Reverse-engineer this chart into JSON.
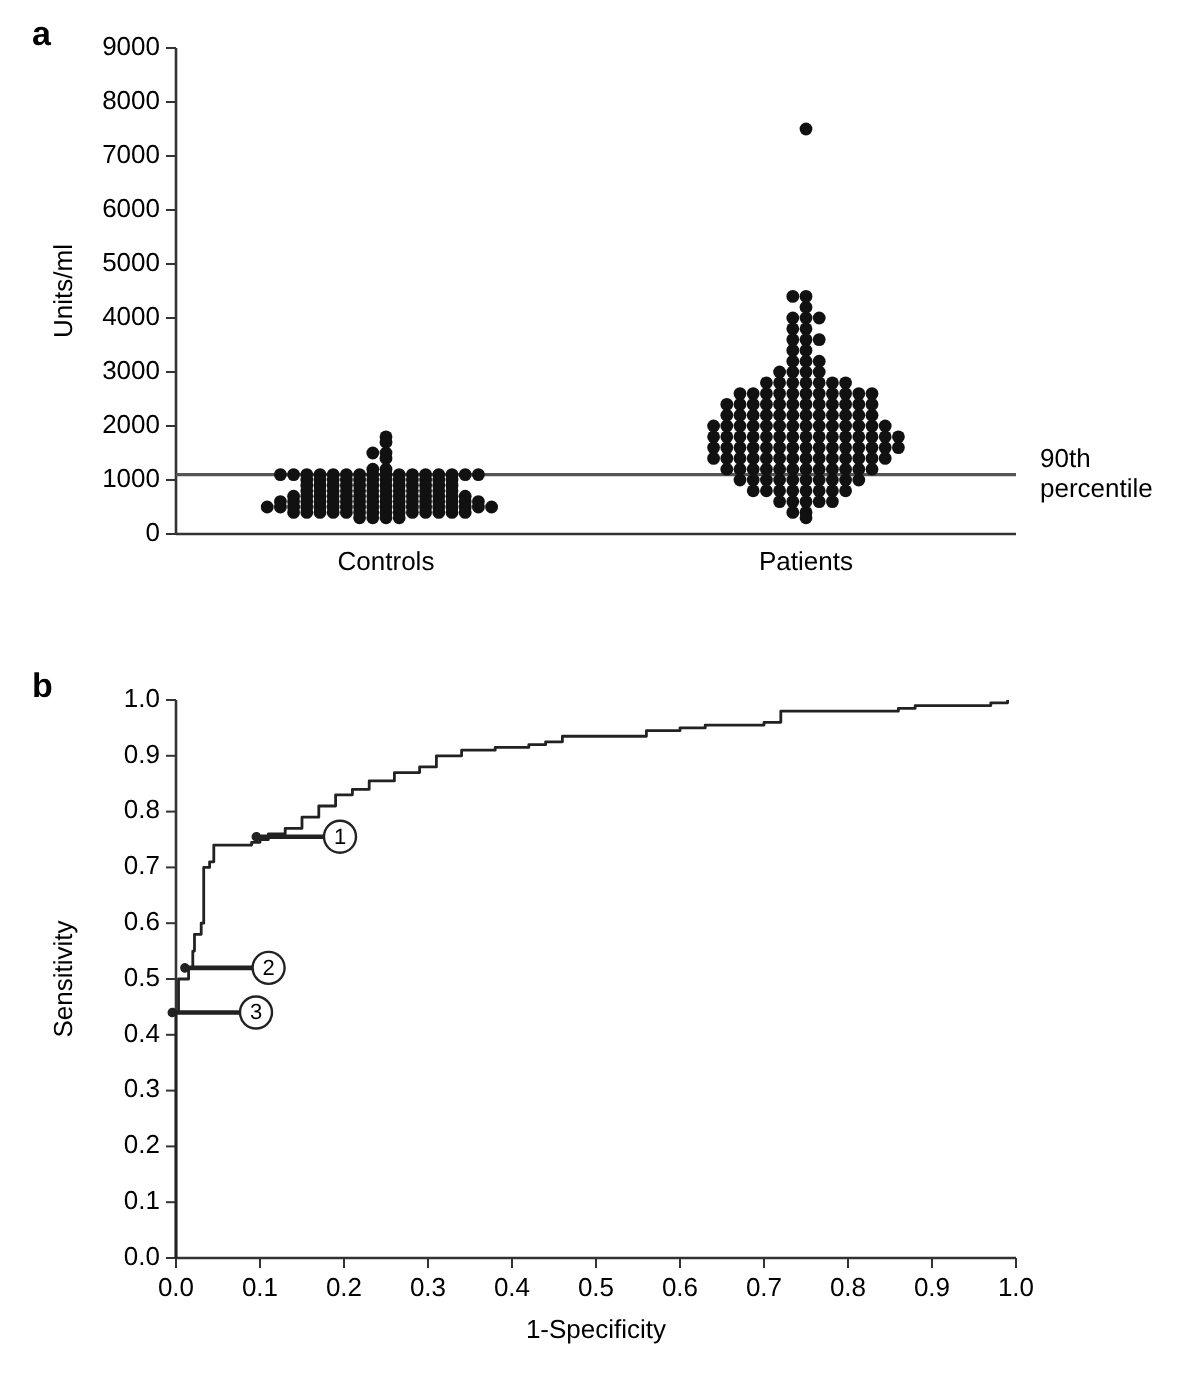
{
  "chart_data": [
    {
      "type": "scatter",
      "title": "a",
      "ylabel": "Units/ml",
      "categories": [
        "Controls",
        "Patients"
      ],
      "ylim": [
        0,
        9000
      ],
      "yticks": [
        0,
        1000,
        2000,
        3000,
        4000,
        5000,
        6000,
        7000,
        8000,
        9000
      ],
      "marker": "circle",
      "ref_lines": [
        {
          "axis": "y",
          "value": 1100,
          "label": "90th percentile",
          "color": "#555555"
        }
      ],
      "series": [
        {
          "color": "#111111",
          "x": [
            "Controls",
            "Controls",
            "Controls",
            "Controls",
            "Controls",
            "Controls",
            "Controls",
            "Controls",
            "Controls",
            "Controls",
            "Controls",
            "Controls",
            "Controls",
            "Controls",
            "Controls",
            "Controls",
            "Controls",
            "Controls",
            "Controls",
            "Controls",
            "Controls",
            "Controls",
            "Controls",
            "Controls",
            "Controls",
            "Controls",
            "Controls",
            "Controls",
            "Controls",
            "Controls",
            "Controls",
            "Controls",
            "Controls",
            "Controls",
            "Controls",
            "Controls",
            "Controls",
            "Controls",
            "Controls",
            "Controls",
            "Controls",
            "Controls",
            "Controls",
            "Controls",
            "Controls",
            "Controls",
            "Controls",
            "Controls",
            "Controls",
            "Controls",
            "Controls",
            "Controls",
            "Controls",
            "Controls",
            "Controls",
            "Controls",
            "Controls",
            "Controls",
            "Controls",
            "Controls",
            "Controls",
            "Controls",
            "Controls",
            "Controls",
            "Controls",
            "Controls",
            "Controls",
            "Controls",
            "Controls",
            "Controls",
            "Controls",
            "Controls",
            "Controls",
            "Controls",
            "Controls",
            "Controls",
            "Controls",
            "Controls",
            "Controls",
            "Controls",
            "Controls",
            "Controls",
            "Controls",
            "Controls",
            "Controls",
            "Controls",
            "Controls",
            "Controls",
            "Controls",
            "Controls",
            "Controls",
            "Controls",
            "Controls",
            "Controls",
            "Controls",
            "Controls",
            "Controls",
            "Controls",
            "Controls",
            "Controls",
            "Controls",
            "Controls",
            "Controls",
            "Controls",
            "Controls",
            "Controls",
            "Controls",
            "Controls",
            "Controls",
            "Controls",
            "Controls",
            "Controls",
            "Controls",
            "Controls",
            "Controls",
            "Controls",
            "Controls",
            "Controls",
            "Controls",
            "Controls",
            "Controls",
            "Controls",
            "Controls",
            "Controls",
            "Controls"
          ],
          "values": [
            1800,
            1700,
            1500,
            1500,
            1400,
            1200,
            1200,
            1100,
            1100,
            1100,
            1100,
            1100,
            1100,
            1100,
            1100,
            1100,
            1100,
            1100,
            1100,
            1100,
            1100,
            1100,
            1100,
            1000,
            1000,
            1000,
            1000,
            1000,
            1000,
            1000,
            1000,
            1000,
            1000,
            1000,
            1000,
            900,
            900,
            900,
            900,
            900,
            900,
            900,
            900,
            900,
            900,
            900,
            900,
            800,
            800,
            800,
            800,
            800,
            800,
            800,
            800,
            800,
            800,
            800,
            800,
            700,
            700,
            700,
            700,
            700,
            700,
            700,
            700,
            700,
            700,
            700,
            700,
            700,
            700,
            600,
            600,
            600,
            600,
            600,
            600,
            600,
            600,
            600,
            600,
            600,
            600,
            600,
            600,
            600,
            600,
            500,
            500,
            500,
            500,
            500,
            500,
            500,
            500,
            500,
            500,
            500,
            500,
            500,
            500,
            500,
            500,
            500,
            500,
            400,
            400,
            400,
            400,
            400,
            400,
            400,
            400,
            400,
            400,
            400,
            400,
            400,
            400,
            300,
            300,
            300,
            300
          ]
        },
        {
          "color": "#111111",
          "x": [
            "Patients",
            "Patients",
            "Patients",
            "Patients",
            "Patients",
            "Patients",
            "Patients",
            "Patients",
            "Patients",
            "Patients",
            "Patients",
            "Patients",
            "Patients",
            "Patients",
            "Patients",
            "Patients",
            "Patients",
            "Patients",
            "Patients",
            "Patients",
            "Patients",
            "Patients",
            "Patients",
            "Patients",
            "Patients",
            "Patients",
            "Patients",
            "Patients",
            "Patients",
            "Patients",
            "Patients",
            "Patients",
            "Patients",
            "Patients",
            "Patients",
            "Patients",
            "Patients",
            "Patients",
            "Patients",
            "Patients",
            "Patients",
            "Patients",
            "Patients",
            "Patients",
            "Patients",
            "Patients",
            "Patients",
            "Patients",
            "Patients",
            "Patients",
            "Patients",
            "Patients",
            "Patients",
            "Patients",
            "Patients",
            "Patients",
            "Patients",
            "Patients",
            "Patients",
            "Patients",
            "Patients",
            "Patients",
            "Patients",
            "Patients",
            "Patients",
            "Patients",
            "Patients",
            "Patients",
            "Patients",
            "Patients",
            "Patients",
            "Patients",
            "Patients",
            "Patients",
            "Patients",
            "Patients",
            "Patients",
            "Patients",
            "Patients",
            "Patients",
            "Patients",
            "Patients",
            "Patients",
            "Patients",
            "Patients",
            "Patients",
            "Patients",
            "Patients",
            "Patients",
            "Patients",
            "Patients",
            "Patients",
            "Patients",
            "Patients",
            "Patients",
            "Patients",
            "Patients",
            "Patients",
            "Patients",
            "Patients",
            "Patients",
            "Patients",
            "Patients",
            "Patients",
            "Patients",
            "Patients",
            "Patients",
            "Patients",
            "Patients",
            "Patients",
            "Patients",
            "Patients",
            "Patients",
            "Patients",
            "Patients",
            "Patients",
            "Patients",
            "Patients",
            "Patients",
            "Patients",
            "Patients",
            "Patients",
            "Patients",
            "Patients",
            "Patients",
            "Patients",
            "Patients",
            "Patients",
            "Patients",
            "Patients",
            "Patients",
            "Patients",
            "Patients",
            "Patients",
            "Patients",
            "Patients",
            "Patients",
            "Patients",
            "Patients",
            "Patients",
            "Patients",
            "Patients",
            "Patients",
            "Patients",
            "Patients",
            "Patients",
            "Patients",
            "Patients",
            "Patients",
            "Patients",
            "Patients",
            "Patients",
            "Patients",
            "Patients",
            "Patients",
            "Patients",
            "Patients",
            "Patients",
            "Patients"
          ],
          "values": [
            7500,
            4400,
            4400,
            4200,
            4000,
            4000,
            4000,
            3800,
            3800,
            3600,
            3600,
            3600,
            3400,
            3400,
            3200,
            3200,
            3200,
            3000,
            3000,
            3000,
            3000,
            2800,
            2800,
            2800,
            2800,
            2800,
            2800,
            2600,
            2600,
            2600,
            2600,
            2600,
            2600,
            2600,
            2600,
            2600,
            2600,
            2400,
            2400,
            2400,
            2400,
            2400,
            2400,
            2400,
            2400,
            2400,
            2400,
            2400,
            2400,
            2200,
            2200,
            2200,
            2200,
            2200,
            2200,
            2200,
            2200,
            2200,
            2200,
            2200,
            2200,
            2000,
            2000,
            2000,
            2000,
            2000,
            2000,
            2000,
            2000,
            2000,
            2000,
            2000,
            2000,
            2000,
            2000,
            1800,
            1800,
            1800,
            1800,
            1800,
            1800,
            1800,
            1800,
            1800,
            1800,
            1800,
            1800,
            1800,
            1800,
            1600,
            1600,
            1600,
            1600,
            1600,
            1600,
            1600,
            1600,
            1600,
            1600,
            1600,
            1600,
            1600,
            1600,
            1400,
            1400,
            1400,
            1400,
            1400,
            1400,
            1400,
            1400,
            1400,
            1400,
            1400,
            1400,
            1400,
            1400,
            1200,
            1200,
            1200,
            1200,
            1200,
            1200,
            1200,
            1200,
            1200,
            1200,
            1200,
            1200,
            1000,
            1000,
            1000,
            1000,
            1000,
            1000,
            1000,
            1000,
            1000,
            1000,
            800,
            800,
            800,
            800,
            800,
            800,
            800,
            800,
            600,
            600,
            600,
            600,
            600,
            400,
            400,
            300,
            2800,
            2600,
            1800,
            1600
          ]
        }
      ]
    },
    {
      "type": "step",
      "title": "b",
      "xlabel": "1-Specificity",
      "ylabel": "Sensitivity",
      "xlim": [
        0,
        1
      ],
      "ylim": [
        0,
        1
      ],
      "xticks": [
        {
          "value": 0,
          "label": "0.0"
        },
        {
          "value": 0.1,
          "label": "0.1"
        },
        {
          "value": 0.2,
          "label": "0.2"
        },
        {
          "value": 0.3,
          "label": "0.3"
        },
        {
          "value": 0.4,
          "label": "0.4"
        },
        {
          "value": 0.5,
          "label": "0.5"
        },
        {
          "value": 0.6,
          "label": "0.6"
        },
        {
          "value": 0.7,
          "label": "0.7"
        },
        {
          "value": 0.8,
          "label": "0.8"
        },
        {
          "value": 0.9,
          "label": "0.9"
        },
        {
          "value": 1,
          "label": "1.0"
        }
      ],
      "yticks": [
        {
          "value": 0,
          "label": "0.0"
        },
        {
          "value": 0.1,
          "label": "0.1"
        },
        {
          "value": 0.2,
          "label": "0.2"
        },
        {
          "value": 0.3,
          "label": "0.3"
        },
        {
          "value": 0.4,
          "label": "0.4"
        },
        {
          "value": 0.5,
          "label": "0.5"
        },
        {
          "value": 0.6,
          "label": "0.6"
        },
        {
          "value": 0.7,
          "label": "0.7"
        },
        {
          "value": 0.8,
          "label": "0.8"
        },
        {
          "value": 0.9,
          "label": "0.9"
        },
        {
          "value": 1,
          "label": "1.0"
        }
      ],
      "annotations": [
        {
          "text": "1",
          "x": 0.1,
          "y": 0.755
        },
        {
          "text": "2",
          "x": 0.015,
          "y": 0.52
        },
        {
          "text": "3",
          "x": 0,
          "y": 0.44
        }
      ],
      "series": [
        {
          "color": "#222222",
          "x": [
            0,
            0,
            0.003,
            0.015,
            0.02,
            0.022,
            0.03,
            0.033,
            0.04,
            0.045,
            0.09,
            0.1,
            0.11,
            0.13,
            0.15,
            0.17,
            0.19,
            0.21,
            0.23,
            0.26,
            0.29,
            0.31,
            0.34,
            0.38,
            0.42,
            0.44,
            0.46,
            0.56,
            0.6,
            0.63,
            0.7,
            0.72,
            0.86,
            0.88,
            0.97,
            0.99
          ],
          "values": [
            0,
            0.44,
            0.5,
            0.52,
            0.55,
            0.58,
            0.6,
            0.7,
            0.71,
            0.74,
            0.745,
            0.75,
            0.76,
            0.77,
            0.79,
            0.81,
            0.83,
            0.84,
            0.855,
            0.87,
            0.88,
            0.9,
            0.91,
            0.915,
            0.92,
            0.925,
            0.935,
            0.945,
            0.95,
            0.955,
            0.96,
            0.98,
            0.985,
            0.99,
            0.995,
            1
          ]
        }
      ]
    }
  ]
}
